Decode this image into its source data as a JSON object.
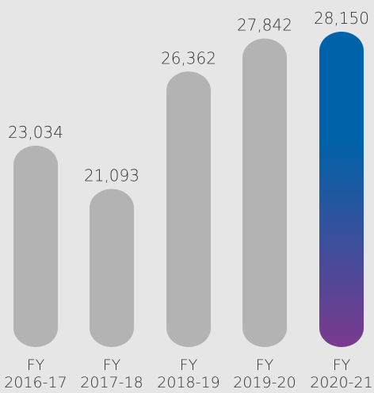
{
  "chart_data": {
    "type": "bar",
    "categories": [
      [
        "FY",
        "2016-17"
      ],
      [
        "FY",
        "2017-18"
      ],
      [
        "FY",
        "2018-19"
      ],
      [
        "FY",
        "2019-20"
      ],
      [
        "FY",
        "2020-21"
      ]
    ],
    "values": [
      23034,
      21093,
      26362,
      27842,
      28150
    ],
    "value_labels": [
      "23,034",
      "21,093",
      "26,362",
      "27,842",
      "28,150"
    ],
    "title": "",
    "xlabel": "",
    "ylabel": "",
    "grid": false,
    "legend": "none",
    "colors": {
      "background": "#e6e6e6",
      "bar": "#b3b3b3",
      "highlight_top": "#0062a8",
      "highlight_bottom": "#7b3a8e",
      "text": "#333333"
    },
    "highlight_index": 4
  }
}
